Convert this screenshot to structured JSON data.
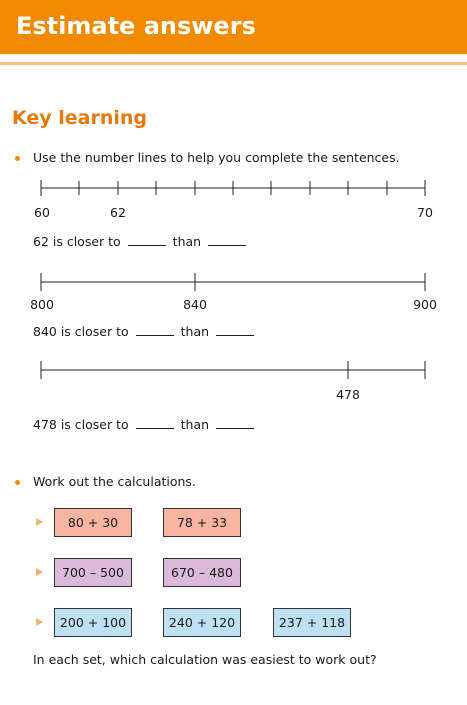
{
  "header": {
    "title": "Estimate answers"
  },
  "key_learning": {
    "title": "Key learning",
    "instruction_1": "Use the number lines to help you complete the sentences.",
    "number_lines": [
      {
        "labels": [
          "60",
          "62",
          "70"
        ],
        "sentence_start": "62 is closer to",
        "sentence_mid": "than"
      },
      {
        "labels": [
          "800",
          "840",
          "900"
        ],
        "sentence_start": "840 is closer to",
        "sentence_mid": "than"
      },
      {
        "labels": [
          "478"
        ],
        "sentence_start": "478 is closer to",
        "sentence_mid": "than"
      }
    ],
    "instruction_2": "Work out the calculations.",
    "calc_sets": [
      {
        "items": [
          "80 + 30",
          "78 + 33"
        ]
      },
      {
        "items": [
          "700 – 500",
          "670 – 480"
        ]
      },
      {
        "items": [
          "200 + 100",
          "240 + 120",
          "237 + 118"
        ]
      }
    ],
    "question": "In each set, which calculation was easiest to work out?"
  }
}
